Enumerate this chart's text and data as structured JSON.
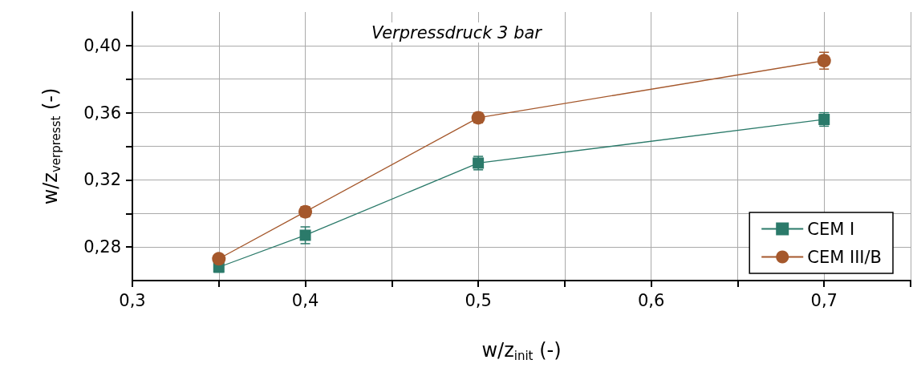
{
  "chart_data": {
    "type": "line",
    "xlabel": "w/z$_{init}$ (-)",
    "ylabel": "w/z$_{verpresst}$ (-)",
    "annotations": [
      "Verpressdruck 3 bar"
    ],
    "x": [
      0.35,
      0.4,
      0.5,
      0.7
    ],
    "series": [
      {
        "name": "CEM I",
        "color": "#2b7a6a",
        "marker": "square",
        "values": [
          0.268,
          0.287,
          0.33,
          0.356
        ],
        "errors": [
          0.003,
          0.005,
          0.004,
          0.004
        ]
      },
      {
        "name": "CEM III/B",
        "color": "#a5582c",
        "marker": "circle",
        "values": [
          0.273,
          0.301,
          0.357,
          0.391
        ],
        "errors": [
          0.002,
          0.003,
          0.003,
          0.005
        ]
      }
    ],
    "xlim": [
      0.3,
      0.75
    ],
    "xticks": [
      {
        "value": 0.3,
        "label": "0,3"
      },
      {
        "value": 0.35,
        "label": null
      },
      {
        "value": 0.4,
        "label": "0,4"
      },
      {
        "value": 0.45,
        "label": null
      },
      {
        "value": 0.5,
        "label": "0,5"
      },
      {
        "value": 0.55,
        "label": null
      },
      {
        "value": 0.6,
        "label": "0,6"
      },
      {
        "value": 0.65,
        "label": null
      },
      {
        "value": 0.7,
        "label": "0,7"
      },
      {
        "value": 0.75,
        "label": null
      }
    ],
    "ylim": [
      0.26,
      0.42
    ],
    "yticks": [
      {
        "value": 0.28,
        "label": "0,28"
      },
      {
        "value": 0.3,
        "label": null
      },
      {
        "value": 0.32,
        "label": "0,32"
      },
      {
        "value": 0.34,
        "label": null
      },
      {
        "value": 0.36,
        "label": "0,36"
      },
      {
        "value": 0.38,
        "label": null
      },
      {
        "value": 0.4,
        "label": "0,40"
      }
    ],
    "grid": true,
    "legend": "bottom right",
    "line_style": "solid"
  }
}
